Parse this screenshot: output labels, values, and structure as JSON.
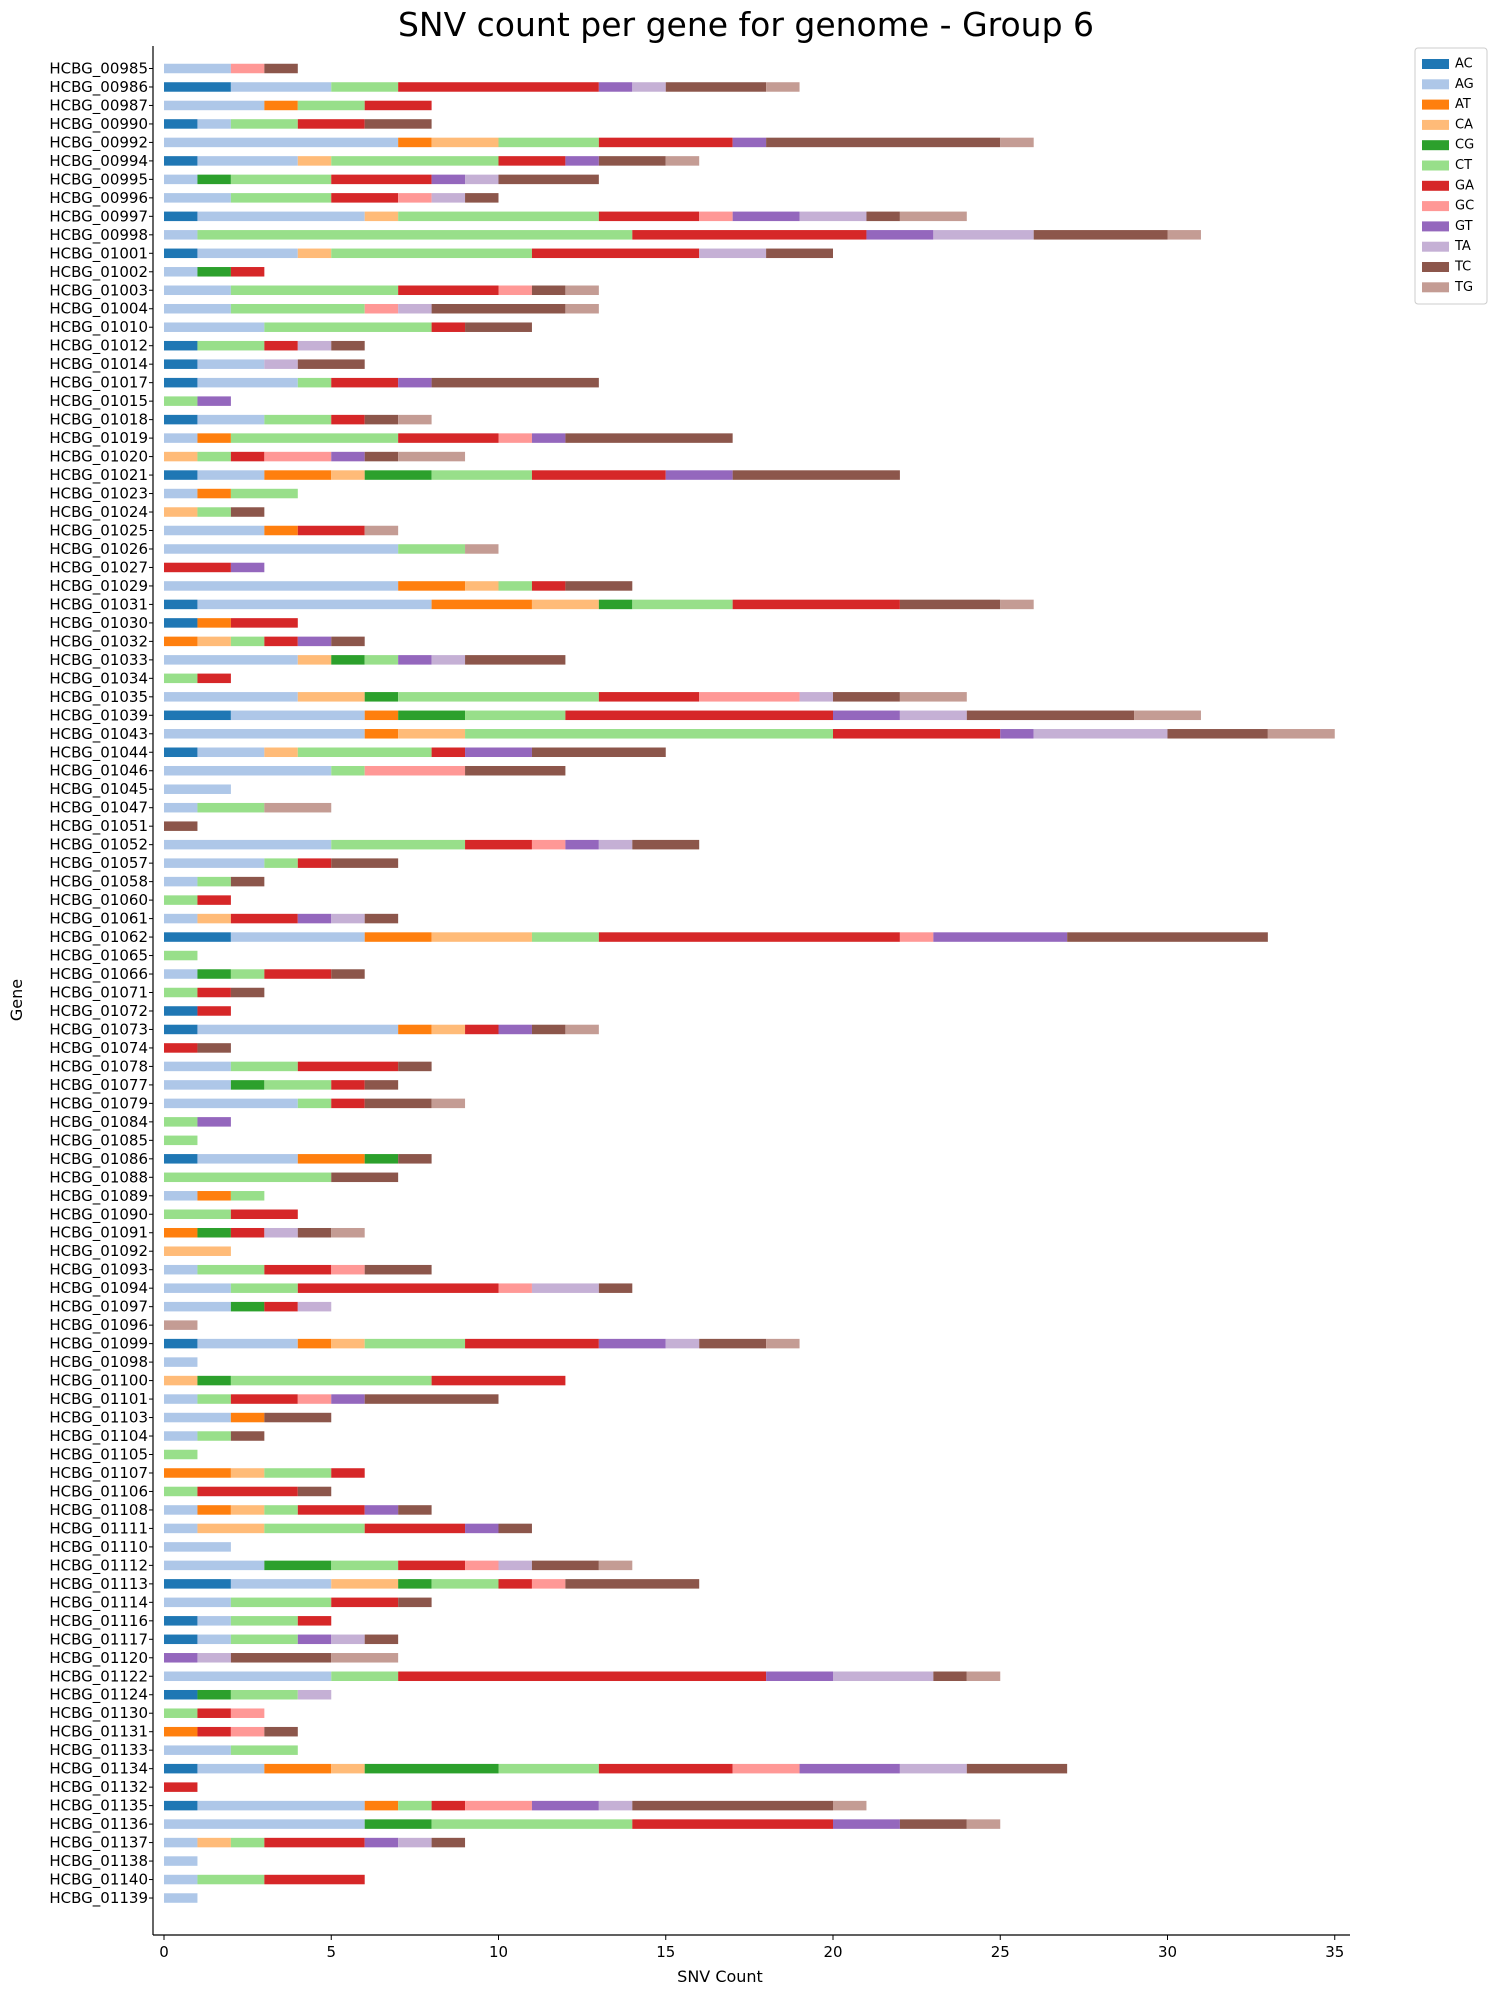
{
  "chart_data": {
    "type": "bar",
    "orientation": "horizontal",
    "stacked": true,
    "title": "SNV count per gene for genome - Group 6",
    "xlabel": "SNV Count",
    "ylabel": "Gene",
    "xlim": [
      0,
      35
    ],
    "xticks": [
      0,
      5,
      10,
      15,
      20,
      25,
      30,
      35
    ],
    "grid": false,
    "legend_position": "top-right",
    "series_order": [
      "AC",
      "AG",
      "AT",
      "CA",
      "CG",
      "CT",
      "GA",
      "GC",
      "GT",
      "TA",
      "TC",
      "TG"
    ],
    "colors": {
      "AC": "#1f77b4",
      "AG": "#aec7e8",
      "AT": "#ff7f0e",
      "CA": "#ffbb78",
      "CG": "#2ca02c",
      "CT": "#98df8a",
      "GA": "#d62728",
      "GC": "#ff9896",
      "GT": "#9467bd",
      "TA": "#c5b0d5",
      "TC": "#8c564b",
      "TG": "#c49c94"
    },
    "genes": [
      {
        "name": "HCBG_00985",
        "AG": 2,
        "GC": 1,
        "TC": 1
      },
      {
        "name": "HCBG_00986",
        "AC": 2,
        "AG": 3,
        "CT": 2,
        "GA": 6,
        "GT": 1,
        "TA": 1,
        "TC": 3,
        "TG": 1
      },
      {
        "name": "HCBG_00987",
        "AG": 3,
        "AT": 1,
        "CT": 2,
        "GA": 2
      },
      {
        "name": "HCBG_00990",
        "AC": 1,
        "AG": 1,
        "CT": 2,
        "GA": 2,
        "TC": 2
      },
      {
        "name": "HCBG_00992",
        "AG": 7,
        "AT": 1,
        "CA": 2,
        "CT": 3,
        "GA": 4,
        "GT": 1,
        "TC": 7,
        "TG": 1
      },
      {
        "name": "HCBG_00994",
        "AC": 1,
        "AG": 3,
        "CA": 1,
        "CT": 5,
        "GA": 2,
        "GT": 1,
        "TC": 2,
        "TG": 1
      },
      {
        "name": "HCBG_00995",
        "AG": 1,
        "CG": 1,
        "CT": 3,
        "GA": 3,
        "GT": 1,
        "TA": 1,
        "TC": 3
      },
      {
        "name": "HCBG_00996",
        "AG": 2,
        "CT": 3,
        "GA": 2,
        "GC": 1,
        "TA": 1,
        "TC": 1
      },
      {
        "name": "HCBG_00997",
        "AC": 1,
        "AG": 5,
        "CA": 1,
        "CT": 6,
        "GA": 3,
        "GC": 1,
        "GT": 2,
        "TA": 2,
        "TC": 1,
        "TG": 2
      },
      {
        "name": "HCBG_00998",
        "AG": 1,
        "CT": 13,
        "GA": 7,
        "GT": 2,
        "TA": 3,
        "TC": 4,
        "TG": 1
      },
      {
        "name": "HCBG_01001",
        "AC": 1,
        "AG": 3,
        "CA": 1,
        "CT": 6,
        "GA": 5,
        "TA": 2,
        "TC": 2
      },
      {
        "name": "HCBG_01002",
        "AG": 1,
        "CG": 1,
        "GA": 1
      },
      {
        "name": "HCBG_01003",
        "AG": 2,
        "CT": 5,
        "GA": 3,
        "GC": 1,
        "TC": 1,
        "TG": 1
      },
      {
        "name": "HCBG_01004",
        "AG": 2,
        "CT": 4,
        "GC": 1,
        "TA": 1,
        "TC": 4,
        "TG": 1
      },
      {
        "name": "HCBG_01010",
        "AG": 3,
        "CT": 5,
        "GA": 1,
        "TC": 2
      },
      {
        "name": "HCBG_01012",
        "AC": 1,
        "CT": 2,
        "GA": 1,
        "TA": 1,
        "TC": 1
      },
      {
        "name": "HCBG_01014",
        "AC": 1,
        "AG": 2,
        "TA": 1,
        "TC": 2
      },
      {
        "name": "HCBG_01017",
        "AC": 1,
        "AG": 3,
        "CT": 1,
        "GA": 2,
        "GT": 1,
        "TC": 5
      },
      {
        "name": "HCBG_01015",
        "CT": 1,
        "GT": 1
      },
      {
        "name": "HCBG_01018",
        "AC": 1,
        "AG": 2,
        "CT": 2,
        "GA": 1,
        "TC": 1,
        "TG": 1
      },
      {
        "name": "HCBG_01019",
        "AG": 1,
        "AT": 1,
        "CT": 5,
        "GA": 3,
        "GC": 1,
        "GT": 1,
        "TC": 5
      },
      {
        "name": "HCBG_01020",
        "CA": 1,
        "CT": 1,
        "GA": 1,
        "GC": 2,
        "GT": 1,
        "TC": 1,
        "TG": 2
      },
      {
        "name": "HCBG_01021",
        "AC": 1,
        "AG": 2,
        "AT": 2,
        "CA": 1,
        "CG": 2,
        "CT": 3,
        "GA": 4,
        "GT": 2,
        "TC": 5
      },
      {
        "name": "HCBG_01023",
        "AG": 1,
        "AT": 1,
        "CT": 2
      },
      {
        "name": "HCBG_01024",
        "CA": 1,
        "CT": 1,
        "TC": 1
      },
      {
        "name": "HCBG_01025",
        "AG": 3,
        "AT": 1,
        "GA": 2,
        "TG": 1
      },
      {
        "name": "HCBG_01026",
        "AG": 7,
        "CT": 2,
        "TG": 1
      },
      {
        "name": "HCBG_01027",
        "GA": 2,
        "GT": 1
      },
      {
        "name": "HCBG_01029",
        "AG": 7,
        "AT": 2,
        "CA": 1,
        "CT": 1,
        "GA": 1,
        "TC": 2
      },
      {
        "name": "HCBG_01031",
        "AC": 1,
        "AG": 7,
        "AT": 3,
        "CA": 2,
        "CG": 1,
        "CT": 3,
        "GA": 5,
        "TC": 3,
        "TG": 1
      },
      {
        "name": "HCBG_01030",
        "AC": 1,
        "AT": 1,
        "GA": 2
      },
      {
        "name": "HCBG_01032",
        "AT": 1,
        "CA": 1,
        "CT": 1,
        "GA": 1,
        "GT": 1,
        "TC": 1
      },
      {
        "name": "HCBG_01033",
        "AG": 4,
        "CA": 1,
        "CG": 1,
        "CT": 1,
        "GT": 1,
        "TA": 1,
        "TC": 3
      },
      {
        "name": "HCBG_01034",
        "CT": 1,
        "GA": 1
      },
      {
        "name": "HCBG_01035",
        "AG": 4,
        "CA": 2,
        "CG": 1,
        "CT": 6,
        "GA": 3,
        "GC": 3,
        "TA": 1,
        "TC": 2,
        "TG": 2
      },
      {
        "name": "HCBG_01039",
        "AC": 2,
        "AG": 4,
        "AT": 1,
        "CG": 2,
        "CT": 3,
        "GA": 8,
        "GT": 2,
        "TA": 2,
        "TC": 5,
        "TG": 2
      },
      {
        "name": "HCBG_01043",
        "AG": 6,
        "AT": 1,
        "CA": 2,
        "CT": 11,
        "GA": 5,
        "GT": 1,
        "TA": 4,
        "TC": 3,
        "TG": 2
      },
      {
        "name": "HCBG_01044",
        "AC": 1,
        "AG": 2,
        "CA": 1,
        "CT": 4,
        "GA": 1,
        "GT": 2,
        "TC": 4
      },
      {
        "name": "HCBG_01046",
        "AG": 5,
        "CT": 1,
        "GC": 3,
        "TC": 3
      },
      {
        "name": "HCBG_01045",
        "AG": 2
      },
      {
        "name": "HCBG_01047",
        "AG": 1,
        "CT": 2,
        "TG": 2
      },
      {
        "name": "HCBG_01051",
        "TC": 1
      },
      {
        "name": "HCBG_01052",
        "AG": 5,
        "CT": 4,
        "GA": 2,
        "GC": 1,
        "GT": 1,
        "TA": 1,
        "TC": 2
      },
      {
        "name": "HCBG_01057",
        "AG": 3,
        "CT": 1,
        "GA": 1,
        "TC": 2
      },
      {
        "name": "HCBG_01058",
        "AG": 1,
        "CT": 1,
        "TC": 1
      },
      {
        "name": "HCBG_01060",
        "CT": 1,
        "GA": 1
      },
      {
        "name": "HCBG_01061",
        "AG": 1,
        "CA": 1,
        "GA": 2,
        "GT": 1,
        "TA": 1,
        "TC": 1
      },
      {
        "name": "HCBG_01062",
        "AC": 2,
        "AG": 4,
        "AT": 2,
        "CA": 3,
        "CT": 2,
        "GA": 9,
        "GC": 1,
        "GT": 4,
        "TC": 6
      },
      {
        "name": "HCBG_01065",
        "CT": 1
      },
      {
        "name": "HCBG_01066",
        "AG": 1,
        "CG": 1,
        "CT": 1,
        "GA": 2,
        "TC": 1
      },
      {
        "name": "HCBG_01071",
        "CT": 1,
        "GA": 1,
        "TC": 1
      },
      {
        "name": "HCBG_01072",
        "AC": 1,
        "GA": 1
      },
      {
        "name": "HCBG_01073",
        "AC": 1,
        "AG": 6,
        "AT": 1,
        "CA": 1,
        "GA": 1,
        "GT": 1,
        "TC": 1,
        "TG": 1
      },
      {
        "name": "HCBG_01074",
        "GA": 1,
        "TC": 1
      },
      {
        "name": "HCBG_01078",
        "AG": 2,
        "CT": 2,
        "GA": 3,
        "TC": 1
      },
      {
        "name": "HCBG_01077",
        "AG": 2,
        "CG": 1,
        "CT": 2,
        "GA": 1,
        "TC": 1
      },
      {
        "name": "HCBG_01079",
        "AG": 4,
        "CT": 1,
        "GA": 1,
        "TC": 2,
        "TG": 1
      },
      {
        "name": "HCBG_01084",
        "CT": 1,
        "GT": 1
      },
      {
        "name": "HCBG_01085",
        "CT": 1
      },
      {
        "name": "HCBG_01086",
        "AC": 1,
        "AG": 3,
        "AT": 2,
        "CG": 1,
        "TC": 1
      },
      {
        "name": "HCBG_01088",
        "CT": 5,
        "TC": 2
      },
      {
        "name": "HCBG_01089",
        "AG": 1,
        "AT": 1,
        "CT": 1
      },
      {
        "name": "HCBG_01090",
        "CT": 2,
        "GA": 2
      },
      {
        "name": "HCBG_01091",
        "AT": 1,
        "CG": 1,
        "GA": 1,
        "TA": 1,
        "TC": 1,
        "TG": 1
      },
      {
        "name": "HCBG_01092",
        "CA": 2
      },
      {
        "name": "HCBG_01093",
        "AG": 1,
        "CT": 2,
        "GA": 2,
        "GC": 1,
        "TC": 2
      },
      {
        "name": "HCBG_01094",
        "AG": 2,
        "CT": 2,
        "GA": 6,
        "GC": 1,
        "TA": 2,
        "TC": 1
      },
      {
        "name": "HCBG_01097",
        "AG": 2,
        "CG": 1,
        "GA": 1,
        "TA": 1
      },
      {
        "name": "HCBG_01096",
        "TG": 1
      },
      {
        "name": "HCBG_01099",
        "AC": 1,
        "AG": 3,
        "AT": 1,
        "CA": 1,
        "CT": 3,
        "GA": 4,
        "GT": 2,
        "TA": 1,
        "TC": 2,
        "TG": 1
      },
      {
        "name": "HCBG_01098",
        "AG": 1
      },
      {
        "name": "HCBG_01100",
        "CA": 1,
        "CG": 1,
        "CT": 6,
        "GA": 4
      },
      {
        "name": "HCBG_01101",
        "AG": 1,
        "CT": 1,
        "GA": 2,
        "GC": 1,
        "GT": 1,
        "TC": 4
      },
      {
        "name": "HCBG_01103",
        "AG": 2,
        "AT": 1,
        "TC": 2
      },
      {
        "name": "HCBG_01104",
        "AG": 1,
        "CT": 1,
        "TC": 1
      },
      {
        "name": "HCBG_01105",
        "CT": 1
      },
      {
        "name": "HCBG_01107",
        "AT": 2,
        "CA": 1,
        "CT": 2,
        "GA": 1
      },
      {
        "name": "HCBG_01106",
        "CT": 1,
        "GA": 3,
        "TC": 1
      },
      {
        "name": "HCBG_01108",
        "AG": 1,
        "AT": 1,
        "CA": 1,
        "CT": 1,
        "GA": 2,
        "GT": 1,
        "TC": 1
      },
      {
        "name": "HCBG_01111",
        "AG": 1,
        "CA": 2,
        "CT": 3,
        "GA": 3,
        "GT": 1,
        "TC": 1
      },
      {
        "name": "HCBG_01110",
        "AG": 2
      },
      {
        "name": "HCBG_01112",
        "AG": 3,
        "CG": 2,
        "CT": 2,
        "GA": 2,
        "GC": 1,
        "TA": 1,
        "TC": 2,
        "TG": 1
      },
      {
        "name": "HCBG_01113",
        "AC": 2,
        "AG": 3,
        "CA": 2,
        "CG": 1,
        "CT": 2,
        "GA": 1,
        "GC": 1,
        "TC": 4
      },
      {
        "name": "HCBG_01114",
        "AG": 2,
        "CT": 3,
        "GA": 2,
        "TC": 1
      },
      {
        "name": "HCBG_01116",
        "AC": 1,
        "AG": 1,
        "CT": 2,
        "GA": 1
      },
      {
        "name": "HCBG_01117",
        "AC": 1,
        "AG": 1,
        "CT": 2,
        "GT": 1,
        "TA": 1,
        "TC": 1
      },
      {
        "name": "HCBG_01120",
        "GT": 1,
        "TA": 1,
        "TC": 3,
        "TG": 2
      },
      {
        "name": "HCBG_01122",
        "AG": 5,
        "CT": 2,
        "GA": 11,
        "GT": 2,
        "TA": 3,
        "TC": 1,
        "TG": 1
      },
      {
        "name": "HCBG_01124",
        "AC": 1,
        "CG": 1,
        "CT": 2,
        "TA": 1
      },
      {
        "name": "HCBG_01130",
        "CT": 1,
        "GA": 1,
        "GC": 1
      },
      {
        "name": "HCBG_01131",
        "AT": 1,
        "GA": 1,
        "GC": 1,
        "TC": 1
      },
      {
        "name": "HCBG_01133",
        "AG": 2,
        "CT": 2
      },
      {
        "name": "HCBG_01134",
        "AC": 1,
        "AG": 2,
        "AT": 2,
        "CA": 1,
        "CG": 4,
        "CT": 3,
        "GA": 4,
        "GC": 2,
        "GT": 3,
        "TA": 2,
        "TC": 3
      },
      {
        "name": "HCBG_01132",
        "GA": 1
      },
      {
        "name": "HCBG_01135",
        "AC": 1,
        "AG": 5,
        "AT": 1,
        "CT": 1,
        "GA": 1,
        "GC": 2,
        "GT": 2,
        "TA": 1,
        "TC": 6,
        "TG": 1
      },
      {
        "name": "HCBG_01136",
        "AG": 6,
        "CG": 2,
        "CT": 6,
        "GA": 6,
        "GT": 2,
        "TC": 2,
        "TG": 1
      },
      {
        "name": "HCBG_01137",
        "AG": 1,
        "CA": 1,
        "CT": 1,
        "GA": 3,
        "GT": 1,
        "TA": 1,
        "TC": 1
      },
      {
        "name": "HCBG_01138",
        "AG": 1
      },
      {
        "name": "HCBG_01140",
        "AG": 1,
        "CT": 2,
        "GA": 3
      },
      {
        "name": "HCBG_01139",
        "AG": 1
      }
    ]
  }
}
